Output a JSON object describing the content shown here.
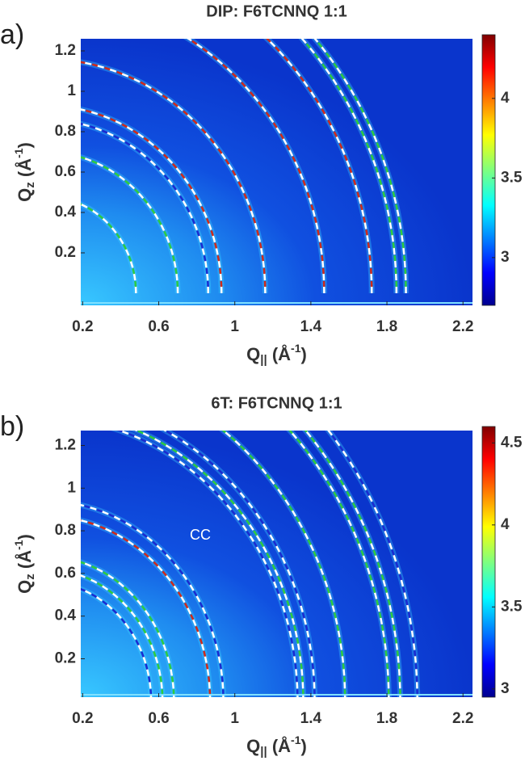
{
  "chart_data": [
    {
      "type": "heatmap",
      "panel_label": "a)",
      "title": "DIP: F6TCNNQ 1:1",
      "xlabel": [
        "Q",
        "||",
        " (Å",
        "-1",
        ")"
      ],
      "ylabel": [
        "Q",
        "z",
        " (Å",
        "-1",
        ")"
      ],
      "xlim": [
        0.19,
        2.25
      ],
      "ylim": [
        -0.06,
        1.26
      ],
      "xticks": [
        0.2,
        0.6,
        1,
        1.4,
        1.8,
        2.2
      ],
      "yticks": [
        0.2,
        0.4,
        0.6,
        0.8,
        1,
        1.2
      ],
      "clim": [
        2.7,
        4.4
      ],
      "cticks": [
        3,
        3.5,
        4
      ],
      "rings": [
        {
          "q": 0.48,
          "color": "#2ecc40"
        },
        {
          "q": 0.7,
          "color": "#2ecc40"
        },
        {
          "q": 0.86,
          "color": "#1a2ad0"
        },
        {
          "q": 0.93,
          "color": "#d02a1a"
        },
        {
          "q": 1.16,
          "color": "#d02a1a"
        },
        {
          "q": 1.47,
          "color": "#d02a1a"
        },
        {
          "q": 1.72,
          "color": "#d02a1a"
        },
        {
          "q": 1.85,
          "color": "#2ecc40"
        },
        {
          "q": 1.9,
          "color": "#2ecc40"
        }
      ]
    },
    {
      "type": "heatmap",
      "panel_label": "b)",
      "title": "6T: F6TCNNQ 1:1",
      "xlabel": [
        "Q",
        "||",
        " (Å",
        "-1",
        ")"
      ],
      "ylabel": [
        "Q",
        "z",
        " (Å",
        "-1",
        ")"
      ],
      "xlim": [
        0.19,
        2.25
      ],
      "ylim": [
        0.02,
        1.27
      ],
      "xticks": [
        0.2,
        0.6,
        1,
        1.4,
        1.8,
        2.2
      ],
      "yticks": [
        0.2,
        0.4,
        0.6,
        0.8,
        1,
        1.2
      ],
      "clim": [
        2.95,
        4.6
      ],
      "cticks": [
        3,
        3.5,
        4,
        4.5
      ],
      "annotation": "CC",
      "rings": [
        {
          "q": 0.56,
          "color": "#1a2ad0"
        },
        {
          "q": 0.62,
          "color": "#2ecc40"
        },
        {
          "q": 0.68,
          "color": "#2ecc40"
        },
        {
          "q": 0.87,
          "color": "#d02a1a"
        },
        {
          "q": 0.94,
          "color": "#1a2ad0"
        },
        {
          "q": 1.33,
          "color": "#1a2ad0"
        },
        {
          "q": 1.36,
          "color": "#2ecc40"
        },
        {
          "q": 1.42,
          "color": "#1a2ad0"
        },
        {
          "q": 1.58,
          "color": "#2ecc40"
        },
        {
          "q": 1.81,
          "color": "#2ecc40"
        },
        {
          "q": 1.87,
          "color": "#2ecc40"
        },
        {
          "q": 1.96,
          "color": "#1a2ad0"
        }
      ]
    }
  ]
}
